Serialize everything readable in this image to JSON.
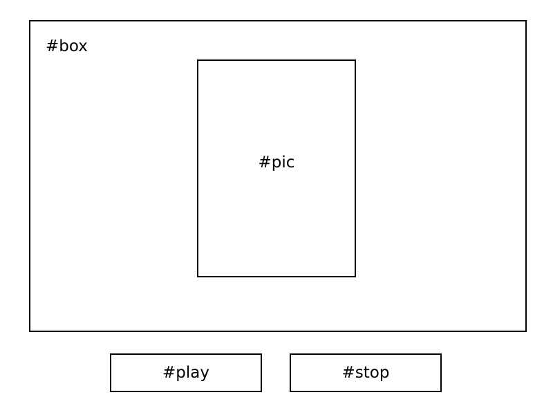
{
  "box": {
    "label": "#box"
  },
  "pic": {
    "label": "#pic"
  },
  "buttons": {
    "play_label": "#play",
    "stop_label": "#stop"
  },
  "colors": {
    "border": "#000000",
    "background": "#ffffff",
    "text": "#000000"
  }
}
